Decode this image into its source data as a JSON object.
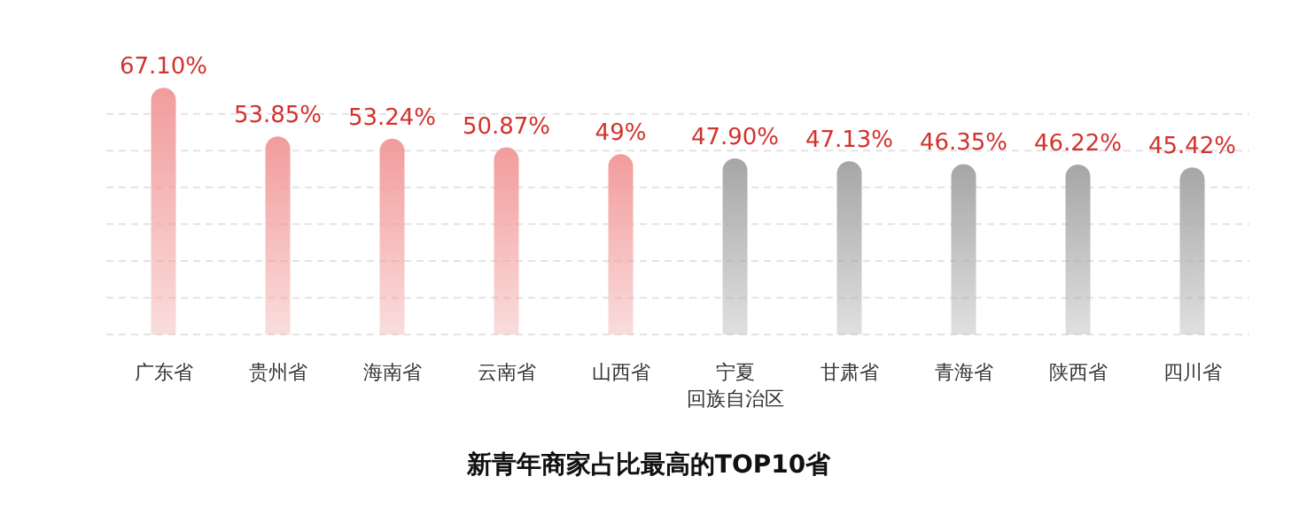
{
  "chart_data": {
    "type": "bar",
    "title": "新青年商家占比最高的TOP10省",
    "categories": [
      "广东省",
      "贵州省",
      "海南省",
      "云南省",
      "山西省",
      "宁夏回族自治区",
      "甘肃省",
      "青海省",
      "陕西省",
      "四川省"
    ],
    "values": [
      67.1,
      53.85,
      53.24,
      50.87,
      49,
      47.9,
      47.13,
      46.35,
      46.22,
      45.42
    ],
    "value_labels": [
      "67.10%",
      "53.85%",
      "53.24%",
      "50.87%",
      "49%",
      "47.90%",
      "47.13%",
      "46.35%",
      "46.22%",
      "45.42%"
    ],
    "colors": [
      "#f29c9c",
      "#f29c9c",
      "#f29c9c",
      "#f29c9c",
      "#f29c9c",
      "#a6a6a6",
      "#a6a6a6",
      "#a6a6a6",
      "#a6a6a6",
      "#a6a6a6"
    ],
    "yticks": [
      {
        "value": 0,
        "label": null
      },
      {
        "value": 10,
        "label": null
      },
      {
        "value": 20,
        "label": null
      },
      {
        "value": 30,
        "label": null
      },
      {
        "value": 40,
        "label": null
      },
      {
        "value": 50,
        "label": null
      },
      {
        "value": 60,
        "label": null
      }
    ],
    "tick_labels": "x",
    "grid": "y"
  }
}
